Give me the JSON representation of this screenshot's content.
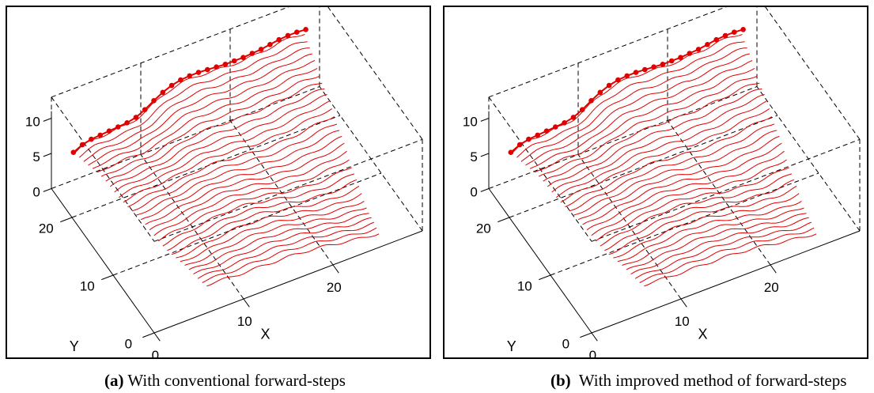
{
  "chart_data": [
    {
      "type": "surface-3d",
      "caption_tag": "(a)",
      "caption_text": "With conventional forward-steps",
      "xlabel": "X",
      "ylabel": "Y",
      "xticks": [
        "0",
        "10",
        "20"
      ],
      "yticks": [
        "0",
        "10",
        "20"
      ],
      "zticks": [
        "0",
        "5",
        "10"
      ],
      "xlim": [
        0,
        30
      ],
      "ylim": [
        0,
        25
      ],
      "zlim": [
        0,
        10
      ],
      "line_color": "#e00000",
      "profile_count": 31,
      "highlighted_profile_z": [
        5.0,
        5.6,
        5.9,
        6.0,
        6.1,
        6.2,
        6.3,
        6.6,
        7.2,
        8.0,
        8.7,
        9.2,
        9.5,
        9.6,
        9.6,
        9.5,
        9.4,
        9.3,
        9.3,
        9.3,
        9.4,
        9.5,
        9.7,
        9.9,
        10.0,
        10.0,
        9.9
      ]
    },
    {
      "type": "surface-3d",
      "caption_tag": "(b)",
      "caption_text": "With improved method of forward-steps",
      "xlabel": "X",
      "ylabel": "Y",
      "xticks": [
        "0",
        "10",
        "20"
      ],
      "yticks": [
        "0",
        "10",
        "20"
      ],
      "zticks": [
        "0",
        "5",
        "10"
      ],
      "xlim": [
        0,
        30
      ],
      "ylim": [
        0,
        25
      ],
      "zlim": [
        0,
        10
      ],
      "line_color": "#e00000",
      "profile_count": 31,
      "highlighted_profile_z": [
        5.0,
        5.6,
        5.9,
        6.0,
        6.1,
        6.2,
        6.3,
        6.6,
        7.2,
        8.0,
        8.7,
        9.2,
        9.5,
        9.6,
        9.6,
        9.5,
        9.4,
        9.3,
        9.3,
        9.3,
        9.4,
        9.5,
        9.7,
        9.9,
        10.0,
        10.0,
        9.9
      ]
    }
  ]
}
